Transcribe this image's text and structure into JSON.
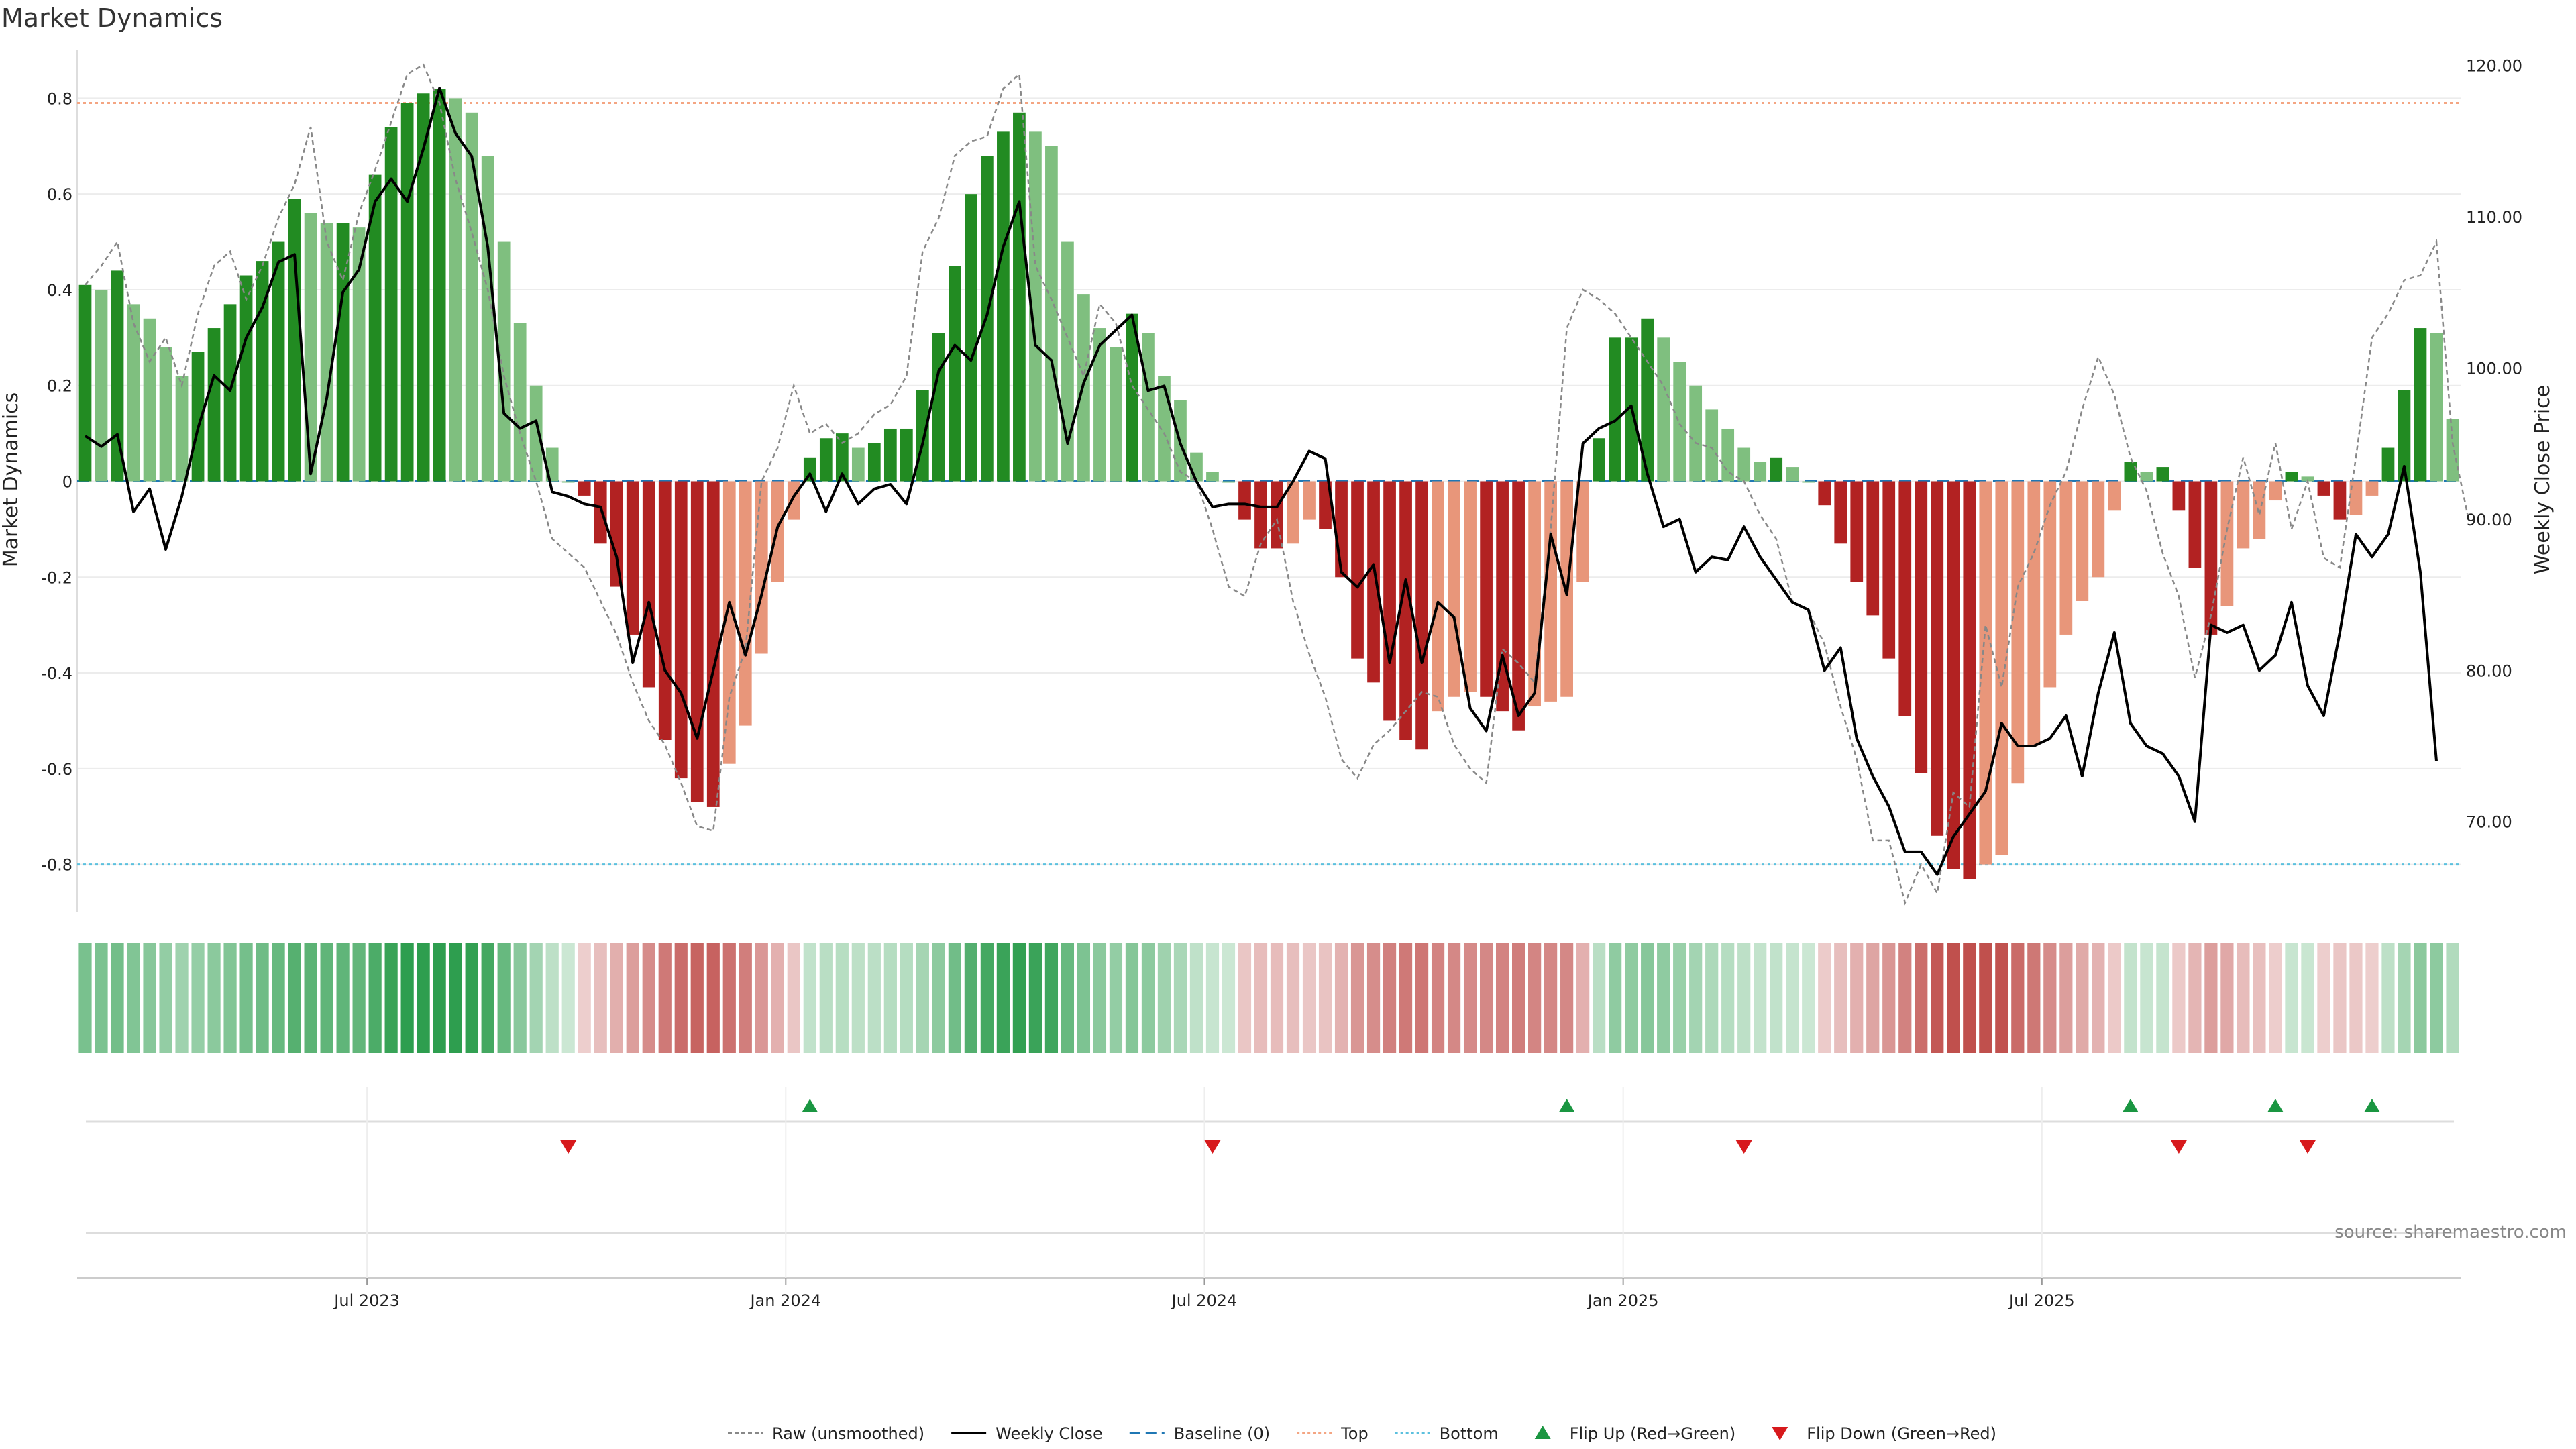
{
  "chart_data": {
    "type": "bar",
    "title": "Market Dynamics",
    "ylabel_left": "Market Dynamics",
    "ylabel_right": "Weekly Close Price",
    "ylim_left": [
      -0.9,
      0.9
    ],
    "ylim_right": [
      64,
      121
    ],
    "yticks_left": [
      "0.8",
      "0.6",
      "0.4",
      "0.2",
      "0",
      "-0.2",
      "-0.4",
      "-0.6",
      "-0.8"
    ],
    "yticks_right": [
      "120.00",
      "110.00",
      "100.00",
      "90.00",
      "80.00",
      "70.00"
    ],
    "xticks": [
      "Jul 2023",
      "Jan 2024",
      "Jul 2024",
      "Jan 2025",
      "Jul 2025"
    ],
    "top_level": 0.79,
    "bottom_level": -0.8,
    "baseline": 0,
    "source": "source: sharemaestro.com",
    "legend": [
      {
        "label": "Raw (unsmoothed)"
      },
      {
        "label": "Weekly Close"
      },
      {
        "label": "Baseline (0)"
      },
      {
        "label": "Top"
      },
      {
        "label": "Bottom"
      },
      {
        "label": "Flip Up (Red→Green)"
      },
      {
        "label": "Flip Down (Green→Red)"
      }
    ],
    "colors": {
      "strong_green": "#228b22",
      "light_green": "#7fbf7f",
      "strong_red": "#b22222",
      "light_red": "#e8967a",
      "raw_line": "#888888",
      "price_line": "#000000",
      "baseline": "#1f77b4",
      "top": "#f4a582",
      "bottom": "#5bc0de",
      "flip_up": "#1a9641",
      "flip_down": "#d7191c"
    },
    "series": [
      {
        "name": "Market Dynamics",
        "values": [
          0.41,
          0.4,
          0.44,
          0.37,
          0.34,
          0.28,
          0.22,
          0.27,
          0.32,
          0.37,
          0.43,
          0.46,
          0.5,
          0.59,
          0.56,
          0.54,
          0.54,
          0.53,
          0.64,
          0.74,
          0.79,
          0.81,
          0.82,
          0.8,
          0.77,
          0.68,
          0.5,
          0.33,
          0.2,
          0.07,
          0.0,
          -0.03,
          -0.13,
          -0.22,
          -0.32,
          -0.43,
          -0.54,
          -0.62,
          -0.67,
          -0.68,
          -0.59,
          -0.51,
          -0.36,
          -0.21,
          -0.08,
          0.05,
          0.09,
          0.1,
          0.07,
          0.08,
          0.11,
          0.11,
          0.19,
          0.31,
          0.45,
          0.6,
          0.68,
          0.73,
          0.77,
          0.73,
          0.7,
          0.5,
          0.39,
          0.32,
          0.28,
          0.35,
          0.31,
          0.22,
          0.17,
          0.06,
          0.02,
          0.0,
          -0.08,
          -0.14,
          -0.14,
          -0.13,
          -0.08,
          -0.1,
          -0.2,
          -0.37,
          -0.42,
          -0.5,
          -0.54,
          -0.56,
          -0.48,
          -0.45,
          -0.44,
          -0.45,
          -0.48,
          -0.52,
          -0.47,
          -0.46,
          -0.45,
          -0.21,
          0.09,
          0.3,
          0.3,
          0.34,
          0.3,
          0.25,
          0.2,
          0.15,
          0.11,
          0.07,
          0.04,
          0.05,
          0.03,
          0.0,
          -0.05,
          -0.13,
          -0.21,
          -0.28,
          -0.37,
          -0.49,
          -0.61,
          -0.74,
          -0.81,
          -0.83,
          -0.8,
          -0.78,
          -0.63,
          -0.55,
          -0.43,
          -0.32,
          -0.25,
          -0.2,
          -0.06,
          0.04,
          0.02,
          0.03,
          -0.06,
          -0.18,
          -0.32,
          -0.26,
          -0.14,
          -0.12,
          -0.04,
          0.02,
          0.01,
          -0.03,
          -0.08,
          -0.07,
          -0.03,
          0.07,
          0.19,
          0.32,
          0.31,
          0.13
        ]
      },
      {
        "name": "Raw (unsmoothed)",
        "values": [
          0.41,
          0.45,
          0.5,
          0.33,
          0.25,
          0.3,
          0.2,
          0.35,
          0.45,
          0.48,
          0.38,
          0.45,
          0.55,
          0.62,
          0.74,
          0.5,
          0.42,
          0.56,
          0.65,
          0.75,
          0.85,
          0.87,
          0.79,
          0.63,
          0.52,
          0.4,
          0.22,
          0.1,
          0.0,
          -0.12,
          -0.15,
          -0.18,
          -0.25,
          -0.32,
          -0.42,
          -0.5,
          -0.55,
          -0.63,
          -0.72,
          -0.73,
          -0.45,
          -0.35,
          0.0,
          0.07,
          0.2,
          0.1,
          0.12,
          0.08,
          0.1,
          0.14,
          0.16,
          0.22,
          0.48,
          0.55,
          0.68,
          0.71,
          0.72,
          0.82,
          0.85,
          0.45,
          0.38,
          0.3,
          0.22,
          0.37,
          0.33,
          0.2,
          0.15,
          0.1,
          0.02,
          0.0,
          -0.1,
          -0.22,
          -0.24,
          -0.13,
          -0.08,
          -0.25,
          -0.36,
          -0.45,
          -0.58,
          -0.62,
          -0.55,
          -0.52,
          -0.48,
          -0.44,
          -0.45,
          -0.55,
          -0.6,
          -0.63,
          -0.35,
          -0.38,
          -0.42,
          -0.1,
          0.32,
          0.4,
          0.38,
          0.35,
          0.3,
          0.25,
          0.2,
          0.12,
          0.08,
          0.07,
          0.02,
          0.0,
          -0.07,
          -0.12,
          -0.25,
          -0.27,
          -0.34,
          -0.47,
          -0.58,
          -0.75,
          -0.75,
          -0.88,
          -0.8,
          -0.86,
          -0.65,
          -0.68,
          -0.3,
          -0.43,
          -0.22,
          -0.15,
          -0.05,
          0.02,
          0.15,
          0.26,
          0.18,
          0.05,
          -0.02,
          -0.15,
          -0.24,
          -0.41,
          -0.28,
          -0.1,
          0.05,
          -0.07,
          0.08,
          -0.1,
          0.0,
          -0.16,
          -0.18,
          0.05,
          0.3,
          0.35,
          0.42,
          0.43,
          0.5,
          0.08,
          -0.08
        ]
      },
      {
        "name": "Weekly Close",
        "values": [
          95.5,
          94.8,
          95.6,
          90.5,
          92.0,
          88.0,
          91.5,
          96.0,
          99.5,
          98.5,
          102.0,
          104.0,
          107.0,
          107.5,
          93.0,
          98.0,
          105.0,
          106.5,
          111.0,
          112.5,
          111.0,
          114.5,
          118.5,
          115.5,
          114.0,
          108.0,
          97.0,
          96.0,
          96.5,
          91.8,
          91.5,
          91.0,
          90.8,
          87.5,
          80.5,
          84.5,
          80.0,
          78.5,
          75.5,
          80.0,
          84.5,
          81.0,
          85.0,
          89.5,
          91.5,
          93.0,
          90.5,
          93.0,
          91.0,
          92.0,
          92.3,
          91.0,
          95.0,
          99.8,
          101.5,
          100.5,
          103.5,
          108.0,
          111.0,
          101.5,
          100.5,
          95.0,
          99.0,
          101.5,
          102.5,
          103.5,
          98.5,
          98.8,
          95.0,
          92.5,
          90.8,
          91.0,
          91.0,
          90.8,
          90.8,
          92.5,
          94.5,
          94.0,
          86.5,
          85.5,
          87.0,
          80.5,
          86.0,
          80.5,
          84.5,
          83.5,
          77.5,
          76.0,
          81.0,
          77.0,
          78.5,
          89.0,
          85.0,
          95.0,
          96.0,
          96.5,
          97.5,
          93.0,
          89.5,
          90.0,
          86.5,
          87.5,
          87.3,
          89.5,
          87.5,
          86.0,
          84.5,
          84.0,
          80.0,
          81.5,
          75.5,
          73.0,
          71.0,
          68.0,
          68.0,
          66.5,
          69.0,
          70.5,
          72.0,
          76.5,
          75.0,
          75.0,
          75.5,
          77.0,
          73.0,
          78.5,
          82.5,
          76.5,
          75.0,
          74.5,
          73.0,
          70.0,
          83.0,
          82.5,
          83.0,
          80.0,
          81.0,
          84.5,
          79.0,
          77.0,
          82.5,
          89.0,
          87.5,
          89.0,
          93.5,
          86.5,
          74.0
        ]
      }
    ],
    "flip_up_indices": [
      45,
      92,
      127,
      136,
      142
    ],
    "flip_down_indices": [
      30,
      70,
      103,
      130,
      138
    ]
  }
}
